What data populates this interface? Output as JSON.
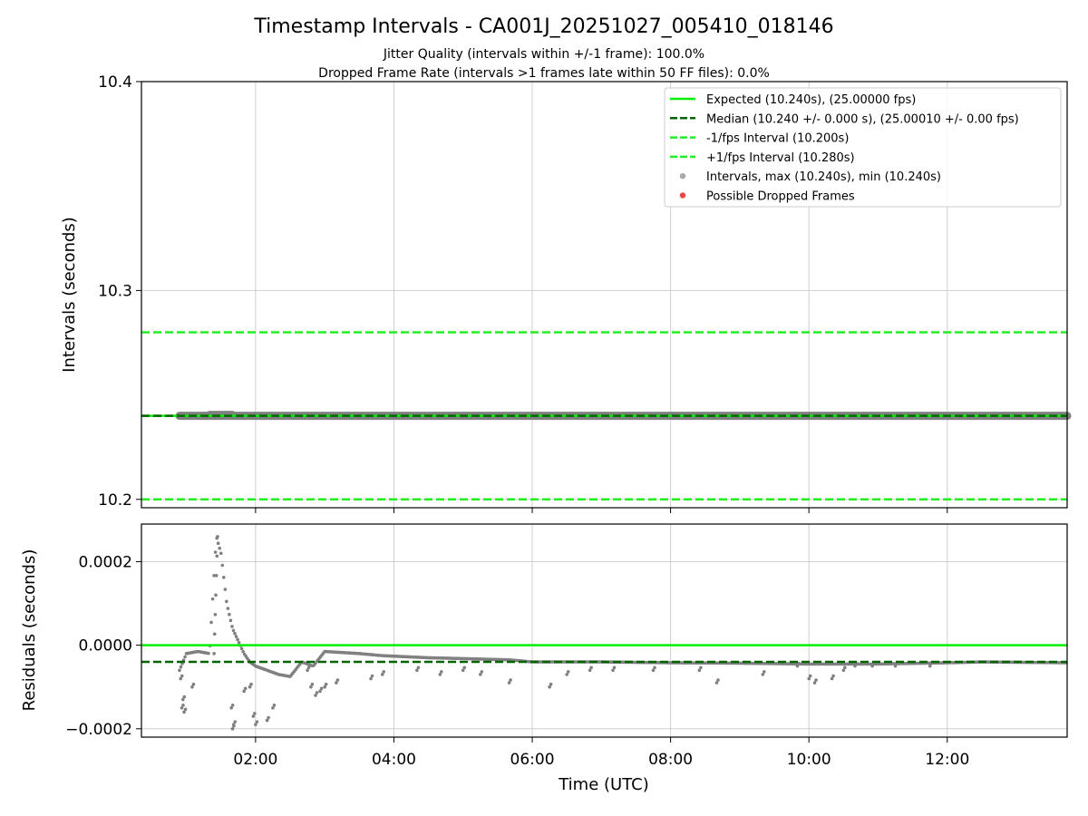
{
  "figure": {
    "title": "Timestamp Intervals - CA001J_20251027_005410_018146",
    "subtitle_1": "Jitter Quality (intervals within +/-1 frame): 100.0%",
    "subtitle_2": "Dropped Frame Rate (intervals >1 frames late within 50 FF files): 0.0%"
  },
  "colors": {
    "expected": "#00ee00",
    "median": "#006400",
    "interval_lines": "#22ee22",
    "points": "#808080",
    "dropped": "#ee4444",
    "grid": "#cfcfcf"
  },
  "chart_data": [
    {
      "type": "scatter",
      "xlabel": "",
      "ylabel": "Intervals (seconds)",
      "xlim": [
        "00:21",
        "13:44"
      ],
      "ylim": [
        10.196,
        10.4
      ],
      "yticks": [
        "10.2",
        "10.3",
        "10.4"
      ],
      "grid": true,
      "legend_position": "top-right",
      "reference_lines": [
        {
          "name": "Expected (10.240s), (25.00000 fps)",
          "y": 10.24,
          "style": "solid"
        },
        {
          "name": "Median (10.240 +/- 0.000 s), (25.00010 +/- 0.00 fps)",
          "y": 10.24,
          "style": "dashed"
        },
        {
          "name": "-1/fps Interval (10.200s)",
          "y": 10.2,
          "style": "dashed"
        },
        {
          "name": "+1/fps Interval (10.280s)",
          "y": 10.28,
          "style": "dashed"
        }
      ],
      "series": [
        {
          "name": "Intervals, max (10.240s), min (10.240s)",
          "x_start": "00:54",
          "x_end": "13:44",
          "y": 10.24
        },
        {
          "name": "Possible Dropped Frames",
          "points": []
        }
      ]
    },
    {
      "type": "scatter",
      "xlabel": "Time (UTC)",
      "ylabel": "Residuals (seconds)",
      "xlim": [
        "00:21",
        "13:44"
      ],
      "ylim": [
        -0.00022,
        0.00029
      ],
      "xticks": [
        "02:00",
        "04:00",
        "06:00",
        "08:00",
        "10:00",
        "12:00"
      ],
      "yticks": [
        "0.0002",
        "0.0000",
        "−0.0002"
      ],
      "grid": true,
      "reference_lines": [
        {
          "y": 0.0,
          "style": "solid"
        },
        {
          "y": -4e-05,
          "style": "dashed"
        }
      ],
      "series": [
        {
          "name": "Residuals",
          "trend": [
            [
              "00:54",
              -6e-05
            ],
            [
              "01:00",
              -2e-05
            ],
            [
              "01:10",
              -1.5e-05
            ],
            [
              "01:20",
              -2e-05
            ],
            [
              "01:26",
              0.00026
            ],
            [
              "01:30",
              0.00022
            ],
            [
              "01:35",
              0.0001
            ],
            [
              "01:40",
              4e-05
            ],
            [
              "01:45",
              1e-05
            ],
            [
              "01:50",
              -2e-05
            ],
            [
              "01:55",
              -4e-05
            ],
            [
              "02:00",
              -5e-05
            ],
            [
              "02:10",
              -6e-05
            ],
            [
              "02:20",
              -7e-05
            ],
            [
              "02:30",
              -7.5e-05
            ],
            [
              "02:40",
              -4e-05
            ],
            [
              "02:50",
              -5e-05
            ],
            [
              "03:00",
              -1.5e-05
            ],
            [
              "03:30",
              -2e-05
            ],
            [
              "03:50",
              -2.5e-05
            ],
            [
              "04:30",
              -3e-05
            ],
            [
              "05:00",
              -3.2e-05
            ],
            [
              "05:40",
              -3.5e-05
            ],
            [
              "06:00",
              -4e-05
            ],
            [
              "07:00",
              -4e-05
            ],
            [
              "08:00",
              -4.2e-05
            ],
            [
              "09:00",
              -4.3e-05
            ],
            [
              "10:00",
              -4.5e-05
            ],
            [
              "11:00",
              -4.5e-05
            ],
            [
              "12:00",
              -4.2e-05
            ],
            [
              "12:30",
              -4e-05
            ],
            [
              "13:44",
              -4.2e-05
            ]
          ],
          "outliers": [
            [
              "00:56",
              -0.00015
            ],
            [
              "00:57",
              -0.00013
            ],
            [
              "00:58",
              -0.00016
            ],
            [
              "00:55",
              -8e-05
            ],
            [
              "01:05",
              -0.0001
            ],
            [
              "01:39",
              -0.00015
            ],
            [
              "01:40",
              -0.0002
            ],
            [
              "01:41",
              -0.00019
            ],
            [
              "01:50",
              -0.00011
            ],
            [
              "01:55",
              -0.0001
            ],
            [
              "01:58",
              -0.00017
            ],
            [
              "02:00",
              -0.00019
            ],
            [
              "02:10",
              -0.00018
            ],
            [
              "02:15",
              -0.00015
            ],
            [
              "02:45",
              -6e-05
            ],
            [
              "02:48",
              -0.0001
            ],
            [
              "02:52",
              -0.00012
            ],
            [
              "02:56",
              -0.00011
            ],
            [
              "03:00",
              -0.0001
            ],
            [
              "03:10",
              -9e-05
            ],
            [
              "03:40",
              -8e-05
            ],
            [
              "03:50",
              -7e-05
            ],
            [
              "04:20",
              -6e-05
            ],
            [
              "04:40",
              -7e-05
            ],
            [
              "05:00",
              -6e-05
            ],
            [
              "05:15",
              -7e-05
            ],
            [
              "05:40",
              -9e-05
            ],
            [
              "06:15",
              -0.0001
            ],
            [
              "06:30",
              -7e-05
            ],
            [
              "06:50",
              -6e-05
            ],
            [
              "07:10",
              -6e-05
            ],
            [
              "07:45",
              -6e-05
            ],
            [
              "08:25",
              -6e-05
            ],
            [
              "08:40",
              -9e-05
            ],
            [
              "09:20",
              -7e-05
            ],
            [
              "09:50",
              -5e-05
            ],
            [
              "10:00",
              -8e-05
            ],
            [
              "10:05",
              -9e-05
            ],
            [
              "10:20",
              -8e-05
            ],
            [
              "10:30",
              -6e-05
            ],
            [
              "10:40",
              -5e-05
            ],
            [
              "10:55",
              -5e-05
            ],
            [
              "11:15",
              -5e-05
            ],
            [
              "11:45",
              -5e-05
            ]
          ]
        }
      ]
    }
  ]
}
